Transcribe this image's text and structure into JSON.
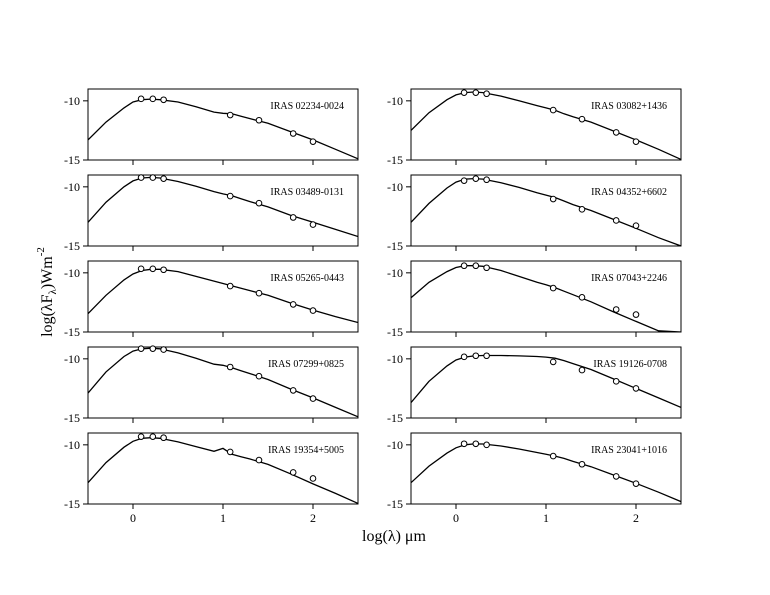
{
  "figure": {
    "xlabel": "log(λ) μm",
    "ylabel": [
      "log(λF",
      "λ",
      ")Wm",
      "-2"
    ]
  },
  "chart_data": [
    {
      "type": "sed",
      "label": "IRAS 02234-0024",
      "xlim": [
        -0.5,
        2.5
      ],
      "ylim": [
        -15,
        -9
      ],
      "xticks": [
        0,
        1,
        2
      ],
      "yticks": [
        -15,
        -10
      ],
      "series": [
        {
          "type": "line",
          "color": "#000000",
          "x": [
            -0.5,
            -0.3,
            -0.1,
            0,
            0.1,
            0.2,
            0.3,
            0.5,
            0.7,
            0.9,
            1.0,
            1.1,
            1.2,
            1.3,
            1.5,
            1.75,
            2,
            2.25,
            2.5
          ],
          "values": [
            -13.3,
            -11.8,
            -10.6,
            -10.1,
            -9.9,
            -9.85,
            -9.9,
            -10.1,
            -10.5,
            -10.95,
            -11.05,
            -11.1,
            -11.3,
            -11.5,
            -11.9,
            -12.6,
            -13.3,
            -14.1,
            -14.9
          ]
        },
        {
          "type": "scatter",
          "color": "#000000",
          "x": [
            0.09,
            0.22,
            0.34,
            1.08,
            1.4,
            1.78,
            2.0
          ],
          "values": [
            -9.83,
            -9.83,
            -9.91,
            -11.2,
            -11.64,
            -12.76,
            -13.45
          ]
        }
      ]
    },
    {
      "type": "sed",
      "label": "IRAS 03082+1436",
      "xlim": [
        -0.5,
        2.5
      ],
      "ylim": [
        -15,
        -9
      ],
      "xticks": [
        0,
        1,
        2
      ],
      "yticks": [
        -15,
        -10
      ],
      "series": [
        {
          "type": "line",
          "color": "#000000",
          "x": [
            -0.5,
            -0.3,
            -0.1,
            0,
            0.1,
            0.2,
            0.3,
            0.5,
            0.7,
            0.9,
            1.0,
            1.1,
            1.2,
            1.3,
            1.5,
            1.75,
            2,
            2.25,
            2.5
          ],
          "values": [
            -12.5,
            -11,
            -9.9,
            -9.5,
            -9.3,
            -9.25,
            -9.3,
            -9.6,
            -10.0,
            -10.4,
            -10.6,
            -10.8,
            -11.1,
            -11.35,
            -11.8,
            -12.55,
            -13.3,
            -14.1,
            -14.95
          ]
        },
        {
          "type": "scatter",
          "color": "#000000",
          "x": [
            0.09,
            0.22,
            0.34,
            1.08,
            1.4,
            1.78,
            2.0
          ],
          "values": [
            -9.31,
            -9.31,
            -9.4,
            -10.78,
            -11.55,
            -12.67,
            -13.45
          ]
        }
      ]
    },
    {
      "type": "sed",
      "label": "IRAS 03489-0131",
      "xlim": [
        -0.5,
        2.5
      ],
      "ylim": [
        -15,
        -9
      ],
      "xticks": [
        0,
        1,
        2
      ],
      "yticks": [
        -15,
        -10
      ],
      "series": [
        {
          "type": "line",
          "color": "#000000",
          "x": [
            -0.5,
            -0.3,
            -0.1,
            0,
            0.1,
            0.2,
            0.3,
            0.5,
            0.7,
            0.9,
            1.0,
            1.1,
            1.2,
            1.3,
            1.5,
            1.75,
            2,
            2.25,
            2.5
          ],
          "values": [
            -13.0,
            -11.3,
            -10.0,
            -9.5,
            -9.25,
            -9.2,
            -9.25,
            -9.55,
            -9.95,
            -10.4,
            -10.6,
            -10.75,
            -11.0,
            -11.25,
            -11.7,
            -12.4,
            -13.0,
            -13.6,
            -14.2
          ]
        },
        {
          "type": "scatter",
          "color": "#000000",
          "x": [
            0.09,
            0.22,
            0.34,
            1.08,
            1.4,
            1.78,
            2.0
          ],
          "values": [
            -9.22,
            -9.22,
            -9.31,
            -10.78,
            -11.38,
            -12.59,
            -13.19
          ]
        }
      ]
    },
    {
      "type": "sed",
      "label": "IRAS 04352+6602",
      "xlim": [
        -0.5,
        2.5
      ],
      "ylim": [
        -15,
        -9
      ],
      "xticks": [
        0,
        1,
        2
      ],
      "yticks": [
        -15,
        -10
      ],
      "series": [
        {
          "type": "line",
          "color": "#000000",
          "x": [
            -0.5,
            -0.3,
            -0.1,
            0,
            0.1,
            0.2,
            0.3,
            0.5,
            0.7,
            0.9,
            1.0,
            1.1,
            1.2,
            1.3,
            1.5,
            1.75,
            2,
            2.25,
            2.5
          ],
          "values": [
            -13.0,
            -11.4,
            -10.1,
            -9.6,
            -9.35,
            -9.3,
            -9.35,
            -9.65,
            -10.05,
            -10.5,
            -10.7,
            -10.9,
            -11.2,
            -11.5,
            -12.0,
            -12.75,
            -13.5,
            -14.3,
            -15.0
          ]
        },
        {
          "type": "scatter",
          "color": "#000000",
          "x": [
            0.09,
            0.22,
            0.34,
            1.08,
            1.4,
            1.78,
            2.0
          ],
          "values": [
            -9.48,
            -9.31,
            -9.4,
            -11.03,
            -11.9,
            -12.84,
            -13.28
          ]
        }
      ]
    },
    {
      "type": "sed",
      "label": "IRAS 05265-0443",
      "xlim": [
        -0.5,
        2.5
      ],
      "ylim": [
        -15,
        -9
      ],
      "xticks": [
        0,
        1,
        2
      ],
      "yticks": [
        -15,
        -10
      ],
      "series": [
        {
          "type": "line",
          "color": "#000000",
          "x": [
            -0.5,
            -0.3,
            -0.1,
            0,
            0.1,
            0.2,
            0.3,
            0.5,
            0.7,
            0.9,
            1.0,
            1.1,
            1.2,
            1.3,
            1.5,
            1.75,
            2,
            2.25,
            2.5
          ],
          "values": [
            -13.45,
            -11.9,
            -10.6,
            -10.1,
            -9.8,
            -9.7,
            -9.7,
            -9.9,
            -10.3,
            -10.7,
            -10.9,
            -11.1,
            -11.3,
            -11.5,
            -11.9,
            -12.55,
            -13.15,
            -13.7,
            -14.2
          ]
        },
        {
          "type": "scatter",
          "color": "#000000",
          "x": [
            0.09,
            0.22,
            0.34,
            1.08,
            1.4,
            1.78,
            2.0
          ],
          "values": [
            -9.66,
            -9.66,
            -9.74,
            -11.12,
            -11.72,
            -12.67,
            -13.19
          ]
        }
      ]
    },
    {
      "type": "sed",
      "label": "IRAS 07043+2246",
      "xlim": [
        -0.5,
        2.5
      ],
      "ylim": [
        -15,
        -9
      ],
      "xticks": [
        0,
        1,
        2
      ],
      "yticks": [
        -15,
        -10
      ],
      "series": [
        {
          "type": "line",
          "color": "#000000",
          "x": [
            -0.5,
            -0.3,
            -0.1,
            0,
            0.1,
            0.2,
            0.3,
            0.5,
            0.7,
            0.9,
            1.0,
            1.1,
            1.2,
            1.3,
            1.5,
            1.75,
            2,
            2.25,
            2.5
          ],
          "values": [
            -12.1,
            -10.8,
            -9.9,
            -9.55,
            -9.4,
            -9.4,
            -9.45,
            -9.8,
            -10.3,
            -10.8,
            -11.0,
            -11.25,
            -11.55,
            -11.85,
            -12.45,
            -13.3,
            -14.1,
            -14.9,
            -15.0
          ]
        },
        {
          "type": "scatter",
          "color": "#000000",
          "x": [
            0.09,
            0.22,
            0.34,
            1.08,
            1.4,
            1.78,
            2.0
          ],
          "values": [
            -9.4,
            -9.4,
            -9.57,
            -11.29,
            -12.07,
            -13.1,
            -13.53
          ]
        }
      ]
    },
    {
      "type": "sed",
      "label": "IRAS 07299+0825",
      "xlim": [
        -0.5,
        2.5
      ],
      "ylim": [
        -15,
        -9
      ],
      "xticks": [
        0,
        1,
        2
      ],
      "yticks": [
        -15,
        -10
      ],
      "series": [
        {
          "type": "line",
          "color": "#000000",
          "x": [
            -0.5,
            -0.3,
            -0.1,
            0,
            0.1,
            0.2,
            0.3,
            0.5,
            0.7,
            0.9,
            1.0,
            1.1,
            1.2,
            1.3,
            1.5,
            1.75,
            2,
            2.25,
            2.5
          ],
          "values": [
            -12.9,
            -11.1,
            -9.8,
            -9.35,
            -9.15,
            -9.1,
            -9.15,
            -9.5,
            -9.95,
            -10.45,
            -10.55,
            -10.75,
            -11.0,
            -11.25,
            -11.75,
            -12.55,
            -13.3,
            -14.1,
            -14.9
          ]
        },
        {
          "type": "scatter",
          "color": "#000000",
          "x": [
            0.09,
            0.22,
            0.34,
            1.08,
            1.4,
            1.78,
            2.0
          ],
          "values": [
            -9.14,
            -9.14,
            -9.22,
            -10.69,
            -11.47,
            -12.67,
            -13.36
          ]
        }
      ]
    },
    {
      "type": "sed",
      "label": "IRAS 19126-0708",
      "xlim": [
        -0.5,
        2.5
      ],
      "ylim": [
        -15,
        -9
      ],
      "xticks": [
        0,
        1,
        2
      ],
      "yticks": [
        -15,
        -10
      ],
      "series": [
        {
          "type": "line",
          "color": "#000000",
          "x": [
            -0.5,
            -0.3,
            -0.1,
            0,
            0.1,
            0.2,
            0.3,
            0.5,
            0.7,
            0.9,
            1.0,
            1.1,
            1.2,
            1.3,
            1.5,
            1.75,
            2,
            2.25,
            2.5
          ],
          "values": [
            -13.7,
            -11.9,
            -10.6,
            -10.1,
            -9.85,
            -9.75,
            -9.72,
            -9.72,
            -9.75,
            -9.8,
            -9.85,
            -9.95,
            -10.15,
            -10.4,
            -10.9,
            -11.7,
            -12.5,
            -13.3,
            -14.1
          ]
        },
        {
          "type": "scatter",
          "color": "#000000",
          "x": [
            0.09,
            0.22,
            0.34,
            1.08,
            1.4,
            1.78,
            2.0
          ],
          "values": [
            -9.83,
            -9.74,
            -9.74,
            -10.26,
            -10.95,
            -11.9,
            -12.5
          ]
        }
      ]
    },
    {
      "type": "sed",
      "label": "IRAS 19354+5005",
      "xlim": [
        -0.5,
        2.5
      ],
      "ylim": [
        -15,
        -9
      ],
      "xticks": [
        0,
        1,
        2
      ],
      "yticks": [
        -15,
        -10
      ],
      "series": [
        {
          "type": "line",
          "color": "#000000",
          "x": [
            -0.5,
            -0.3,
            -0.1,
            0,
            0.1,
            0.2,
            0.3,
            0.5,
            0.7,
            0.9,
            1.0,
            1.1,
            1.2,
            1.3,
            1.5,
            1.75,
            2,
            2.25,
            2.5
          ],
          "values": [
            -13.2,
            -11.5,
            -10.2,
            -9.7,
            -9.45,
            -9.4,
            -9.45,
            -9.75,
            -10.15,
            -10.55,
            -10.3,
            -10.8,
            -11.0,
            -11.2,
            -11.65,
            -12.45,
            -13.3,
            -14.1,
            -14.95
          ]
        },
        {
          "type": "scatter",
          "color": "#000000",
          "x": [
            0.09,
            0.22,
            0.34,
            1.08,
            1.4,
            1.78,
            2.0
          ],
          "values": [
            -9.31,
            -9.31,
            -9.4,
            -10.6,
            -11.29,
            -12.33,
            -12.84
          ]
        }
      ]
    },
    {
      "type": "sed",
      "label": "IRAS 23041+1016",
      "xlim": [
        -0.5,
        2.5
      ],
      "ylim": [
        -15,
        -9
      ],
      "xticks": [
        0,
        1,
        2
      ],
      "yticks": [
        -15,
        -10
      ],
      "series": [
        {
          "type": "line",
          "color": "#000000",
          "x": [
            -0.5,
            -0.3,
            -0.1,
            0,
            0.1,
            0.2,
            0.3,
            0.5,
            0.7,
            0.9,
            1.0,
            1.1,
            1.2,
            1.3,
            1.5,
            1.75,
            2,
            2.25,
            2.5
          ],
          "values": [
            -13.2,
            -11.8,
            -10.7,
            -10.25,
            -10.0,
            -9.92,
            -9.93,
            -10.1,
            -10.35,
            -10.65,
            -10.8,
            -10.95,
            -11.15,
            -11.4,
            -11.85,
            -12.55,
            -13.25,
            -14.0,
            -14.8
          ]
        },
        {
          "type": "scatter",
          "color": "#000000",
          "x": [
            0.09,
            0.22,
            0.34,
            1.08,
            1.4,
            1.78,
            2.0
          ],
          "values": [
            -9.91,
            -9.91,
            -10.0,
            -10.95,
            -11.64,
            -12.67,
            -13.28
          ]
        }
      ]
    }
  ]
}
